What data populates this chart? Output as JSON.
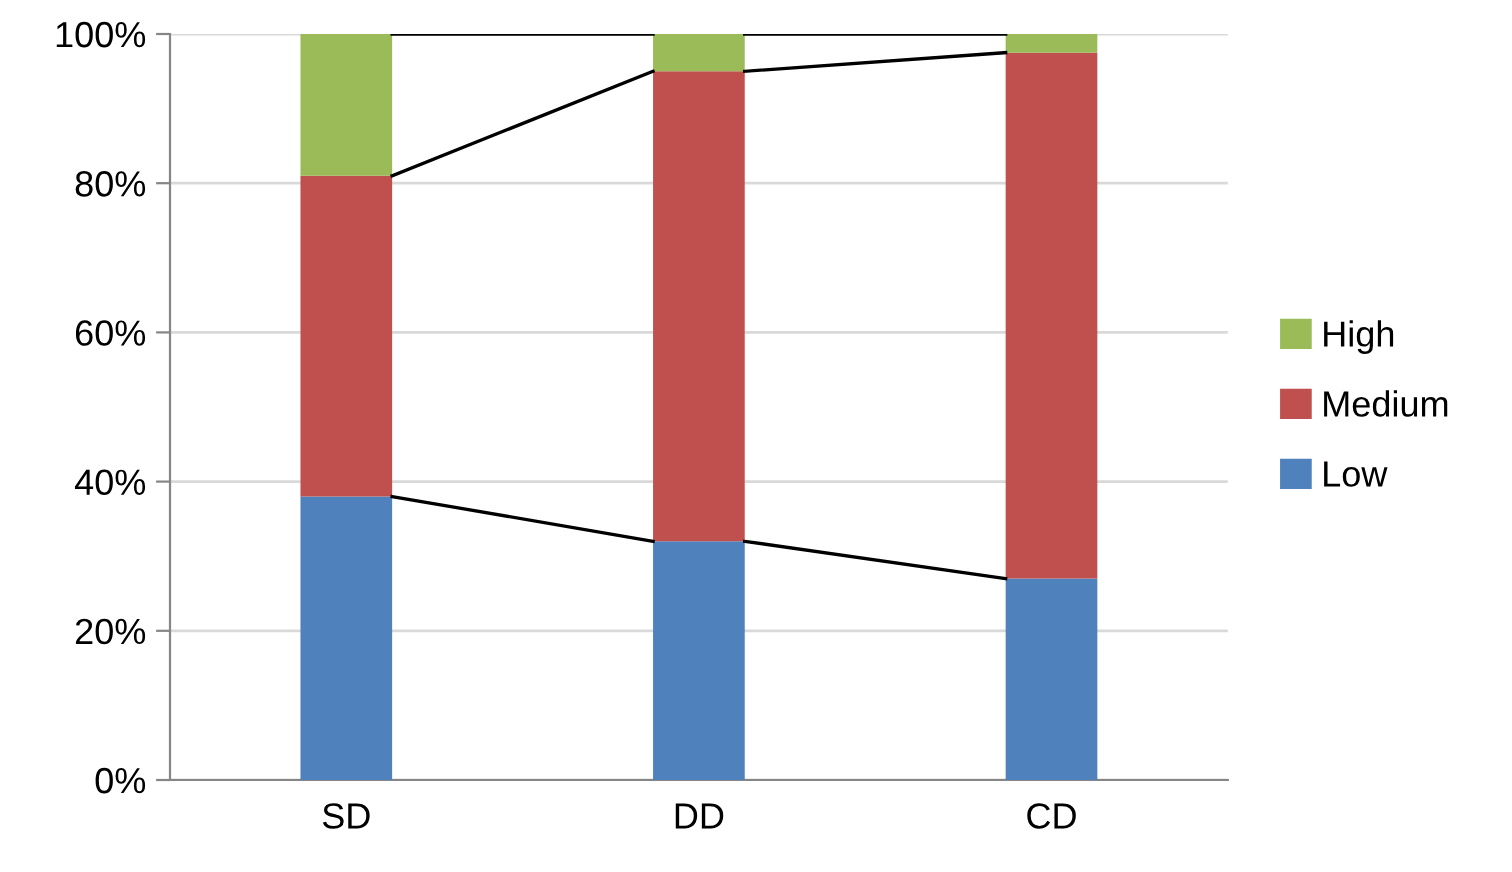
{
  "chart_data": {
    "type": "bar",
    "stacked": true,
    "categories": [
      "SD",
      "DD",
      "CD"
    ],
    "series": [
      {
        "name": "Low",
        "color": "#4f81bd",
        "values": [
          38,
          32,
          27
        ]
      },
      {
        "name": "Medium",
        "color": "#c0504d",
        "values": [
          43,
          63,
          70.5
        ]
      },
      {
        "name": "High",
        "color": "#9bbb59",
        "values": [
          19,
          5,
          2.5
        ]
      }
    ],
    "ylim": [
      0,
      100
    ],
    "yticks": [
      {
        "value": 0,
        "label": "0%"
      },
      {
        "value": 20,
        "label": "20%"
      },
      {
        "value": 40,
        "label": "40%"
      },
      {
        "value": 60,
        "label": "60%"
      },
      {
        "value": 80,
        "label": "80%"
      },
      {
        "value": 100,
        "label": "100%"
      }
    ],
    "grid": "y",
    "legend": "right"
  }
}
